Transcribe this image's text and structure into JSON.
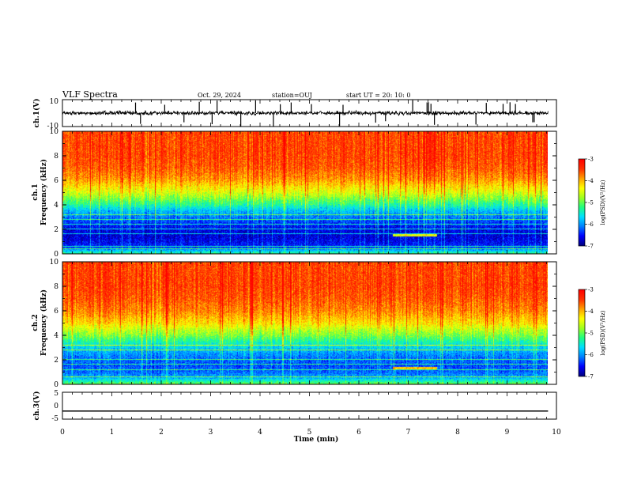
{
  "header": {
    "title": "VLF Spectra",
    "date": "Oct. 29, 2024",
    "station": "station=OUJ",
    "start": "start UT =  20: 10: 0"
  },
  "colors": {
    "spectrogram_ramp": [
      "#000080",
      "#0000ff",
      "#0080ff",
      "#00e0ff",
      "#20ff80",
      "#a0ff20",
      "#ffff00",
      "#ffa000",
      "#ff3000",
      "#ff0000"
    ],
    "trace": "#000000"
  },
  "chart_data": [
    {
      "type": "line",
      "name": "ch1_waveform",
      "ylabel": "ch.1(V)",
      "ylim": [
        -10,
        10
      ],
      "yticks": [
        "10",
        "-10"
      ],
      "xlim": [
        0,
        10
      ],
      "baseline": 0,
      "typical_band": [
        -3,
        3
      ],
      "spike_times": [
        1.48,
        1.58,
        2.07,
        2.46,
        2.77,
        3.03,
        3.13,
        3.61,
        3.91,
        4.27,
        4.41,
        4.63,
        5.04,
        5.61,
        5.68,
        6.34,
        6.54,
        7.09,
        7.38,
        7.41,
        7.46,
        7.53,
        8.37,
        8.58,
        8.92,
        9.06,
        9.17,
        9.52,
        9.55
      ]
    },
    {
      "type": "heatmap",
      "name": "ch1_spectrogram",
      "ylabel": "ch.1\nFrequency (kHz)",
      "ylabel_channel": "ch.1",
      "ylabel_text": "Frequency (kHz)",
      "ylim": [
        0,
        10
      ],
      "yticks": [
        "0",
        "2",
        "4",
        "6",
        "8",
        "10"
      ],
      "xlim": [
        0,
        9.83
      ],
      "color_axis_label": "log(PSD)(V²/Hz)",
      "clim": [
        -7,
        -3
      ],
      "colorbar_ticks": [
        "-3",
        "-4",
        "-5",
        "-6",
        "-7"
      ],
      "freq_profile_khz": [
        0,
        0.5,
        1,
        1.5,
        2,
        2.5,
        3,
        3.5,
        4,
        4.5,
        5,
        6,
        7,
        8,
        9,
        10
      ],
      "freq_profile_logpsd": [
        -5.3,
        -6.4,
        -6.6,
        -6.7,
        -6.6,
        -6.4,
        -6.1,
        -5.8,
        -5.3,
        -4.9,
        -4.5,
        -3.9,
        -3.6,
        -3.5,
        -3.5,
        -3.5
      ],
      "lines_khz": [
        0.4,
        0.6,
        1.6,
        2.0,
        2.4,
        2.8,
        3.2
      ],
      "emission_band": {
        "x_start": 6.7,
        "x_end": 7.6,
        "khz": 1.5
      }
    },
    {
      "type": "heatmap",
      "name": "ch2_spectrogram",
      "ylabel": "ch.2\nFrequency (kHz)",
      "ylabel_channel": "ch.2",
      "ylabel_text": "Frequency (kHz)",
      "ylim": [
        0,
        10
      ],
      "yticks": [
        "0",
        "2",
        "4",
        "6",
        "8",
        "10"
      ],
      "xlim": [
        0,
        9.83
      ],
      "color_axis_label": "log(PSD)(V²/Hz)",
      "clim": [
        -7,
        -3
      ],
      "colorbar_ticks": [
        "-3",
        "-4",
        "-5",
        "-6",
        "-7"
      ],
      "freq_profile_khz": [
        0,
        0.5,
        1,
        1.5,
        2,
        2.5,
        3,
        3.5,
        4,
        4.5,
        5,
        6,
        7,
        8,
        9,
        10
      ],
      "freq_profile_logpsd": [
        -5.0,
        -5.9,
        -6.2,
        -6.3,
        -6.2,
        -6.0,
        -5.7,
        -5.3,
        -4.9,
        -4.6,
        -4.2,
        -3.8,
        -3.6,
        -3.5,
        -3.5,
        -3.5
      ],
      "lines_khz": [
        0.6,
        1.2,
        1.6,
        2.0,
        2.8,
        3.2
      ],
      "emission_band": {
        "x_start": 6.7,
        "x_end": 7.6,
        "khz": 1.3
      }
    },
    {
      "type": "line",
      "name": "ch3_waveform",
      "ylabel": "ch.3(V)",
      "ylim": [
        -5,
        5
      ],
      "yticks": [
        "5",
        "0",
        "-5"
      ],
      "xlim": [
        0,
        10
      ],
      "x": [
        0,
        9.83
      ],
      "y": [
        -2.0,
        -2.0
      ]
    }
  ],
  "xaxis": {
    "label": "Time (min)",
    "ticks": [
      "0",
      "1",
      "2",
      "3",
      "4",
      "5",
      "6",
      "7",
      "8",
      "9",
      "10"
    ]
  }
}
